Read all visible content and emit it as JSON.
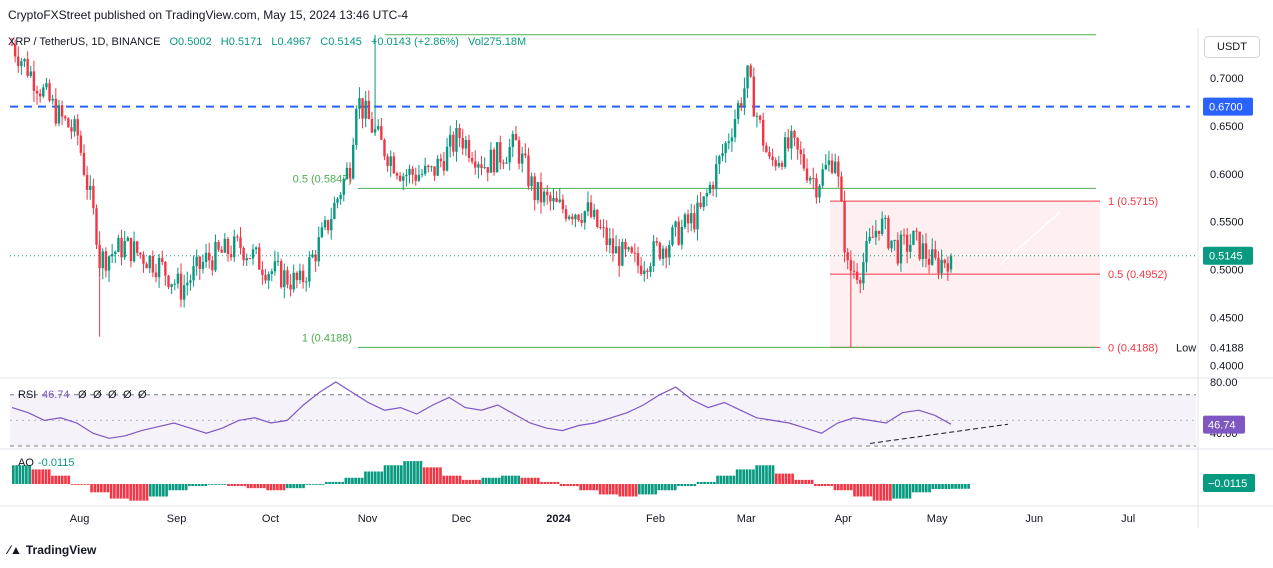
{
  "header": {
    "published": "CryptoFXStreet published on TradingView.com, May 15, 2024 13:46 UTC-4",
    "symbol": "XRP / TetherUS, 1D, BINANCE",
    "open": "O0.5002",
    "high": "H0.5171",
    "low": "L0.4967",
    "close": "C0.5145",
    "change": "+0.0143 (+2.86%)",
    "volume": "Vol275.18M",
    "currency": "USDT"
  },
  "footer": {
    "logo": "TradingView"
  },
  "colors": {
    "up": "#089981",
    "down": "#f23645",
    "fib_left": "#4caf50",
    "fib_right": "#f23645",
    "dash_blue": "#2962ff",
    "rsi": "#7e57c2",
    "ao_up": "#089981",
    "ao_down": "#f23645"
  },
  "chart_data": [
    {
      "type": "candlestick",
      "title": "XRP / TetherUS, 1D, BINANCE",
      "x_tick_labels": [
        "Aug",
        "Sep",
        "Oct",
        "Nov",
        "Dec",
        "2024",
        "Feb",
        "Mar",
        "Apr",
        "May",
        "Jun",
        "Jul"
      ],
      "y_tick_labels": [
        "0.7000",
        "0.6500",
        "0.6000",
        "0.5500",
        "0.5000",
        "0.4500",
        "0.4000"
      ],
      "ylim": [
        0.39,
        0.75
      ],
      "last_price": "0.5145",
      "ohlc_last": {
        "open": 0.5002,
        "high": 0.5171,
        "low": 0.4967,
        "close": 0.5145
      },
      "horizontal_level": {
        "label": "0.6700",
        "value": 0.67,
        "style": "dashed"
      },
      "low_marker": {
        "text": "Low",
        "value": "0.4188"
      },
      "fib_left": [
        {
          "label": "0.5 (0.5847)",
          "value": 0.5847
        },
        {
          "label": "1 (0.4188)",
          "value": 0.4188
        }
      ],
      "fib_right": [
        {
          "label": "1 (0.5715)",
          "value": 0.5715
        },
        {
          "label": "0.5 (0.4952)",
          "value": 0.4952
        },
        {
          "label": "0 (0.4188)",
          "value": 0.4188
        }
      ],
      "fib_top_level": 0.745,
      "trend_approx": [
        {
          "x": "Jul 20",
          "y": 0.735
        },
        {
          "x": "Jul 27",
          "y": 0.7
        },
        {
          "x": "Aug 4",
          "y": 0.66
        },
        {
          "x": "Aug 10",
          "y": 0.64
        },
        {
          "x": "Aug 16",
          "y": 0.54
        },
        {
          "x": "Aug 17",
          "y": 0.51
        },
        {
          "x": "Aug 25",
          "y": 0.525
        },
        {
          "x": "Sep 5",
          "y": 0.505
        },
        {
          "x": "Sep 12",
          "y": 0.48
        },
        {
          "x": "Sep 20",
          "y": 0.51
        },
        {
          "x": "Oct 1",
          "y": 0.525
        },
        {
          "x": "Oct 10",
          "y": 0.5
        },
        {
          "x": "Oct 20",
          "y": 0.485
        },
        {
          "x": "Oct 28",
          "y": 0.54
        },
        {
          "x": "Nov 5",
          "y": 0.61
        },
        {
          "x": "Nov 7",
          "y": 0.68
        },
        {
          "x": "Nov 15",
          "y": 0.63
        },
        {
          "x": "Nov 22",
          "y": 0.6
        },
        {
          "x": "Dec 1",
          "y": 0.6
        },
        {
          "x": "Dec 10",
          "y": 0.64
        },
        {
          "x": "Dec 18",
          "y": 0.61
        },
        {
          "x": "Dec 28",
          "y": 0.63
        },
        {
          "x": "Jan 3",
          "y": 0.58
        },
        {
          "x": "Jan 10",
          "y": 0.565
        },
        {
          "x": "Jan 20",
          "y": 0.56
        },
        {
          "x": "Jan 28",
          "y": 0.52
        },
        {
          "x": "Feb 5",
          "y": 0.505
        },
        {
          "x": "Feb 15",
          "y": 0.53
        },
        {
          "x": "Feb 25",
          "y": 0.56
        },
        {
          "x": "Mar 4",
          "y": 0.63
        },
        {
          "x": "Mar 11",
          "y": 0.7
        },
        {
          "x": "Mar 18",
          "y": 0.61
        },
        {
          "x": "Mar 25",
          "y": 0.63
        },
        {
          "x": "Apr 2",
          "y": 0.59
        },
        {
          "x": "Apr 8",
          "y": 0.62
        },
        {
          "x": "Apr 12",
          "y": 0.5
        },
        {
          "x": "Apr 16",
          "y": 0.5
        },
        {
          "x": "Apr 22",
          "y": 0.55
        },
        {
          "x": "Apr 28",
          "y": 0.52
        },
        {
          "x": "May 3",
          "y": 0.53
        },
        {
          "x": "May 10",
          "y": 0.505
        },
        {
          "x": "May 15",
          "y": 0.5145
        }
      ]
    },
    {
      "type": "line",
      "title": "RSI",
      "value_label": "46.74",
      "indicator_params": [
        "Ø",
        "Ø",
        "Ø",
        "Ø",
        "Ø"
      ],
      "y_tick_labels": [
        "80.00",
        "40.00"
      ],
      "ylim": [
        30,
        80
      ],
      "current": 46.74,
      "values": [
        60,
        56,
        50,
        52,
        48,
        40,
        36,
        38,
        42,
        45,
        48,
        44,
        40,
        44,
        50,
        52,
        48,
        50,
        62,
        72,
        80,
        72,
        64,
        58,
        60,
        55,
        62,
        68,
        60,
        58,
        62,
        55,
        48,
        44,
        42,
        46,
        48,
        52,
        56,
        62,
        70,
        76,
        66,
        60,
        64,
        58,
        52,
        50,
        48,
        44,
        40,
        48,
        52,
        50,
        48,
        56,
        58,
        54,
        47
      ]
    },
    {
      "type": "bar",
      "title": "AO",
      "value_label": "-0.0115",
      "current": -0.0115,
      "ylim": [
        -0.06,
        0.06
      ],
      "values": [
        0.045,
        0.035,
        0.02,
        0.0,
        -0.02,
        -0.035,
        -0.04,
        -0.03,
        -0.015,
        -0.005,
        0.0,
        -0.005,
        -0.01,
        -0.015,
        -0.01,
        0.0,
        0.005,
        0.015,
        0.03,
        0.045,
        0.055,
        0.04,
        0.02,
        0.01,
        0.015,
        0.02,
        0.015,
        0.005,
        -0.005,
        -0.015,
        -0.025,
        -0.03,
        -0.025,
        -0.015,
        -0.005,
        0.005,
        0.02,
        0.035,
        0.045,
        0.025,
        0.01,
        -0.005,
        -0.015,
        -0.03,
        -0.04,
        -0.035,
        -0.02,
        -0.012,
        -0.0115
      ]
    }
  ]
}
